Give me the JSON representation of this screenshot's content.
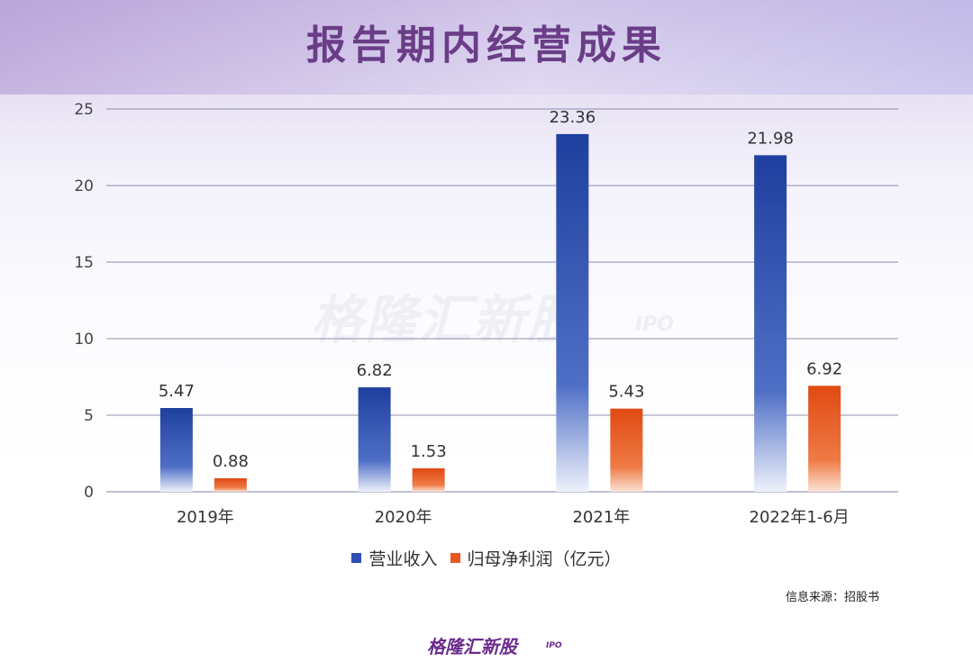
{
  "title": "报告期内经营成果",
  "watermark": {
    "text": "格隆汇新股",
    "sub": "IPO"
  },
  "legend": {
    "revenue": "营业收入",
    "profit": "归母净利润（亿元）"
  },
  "source": "信息来源：招股书",
  "brand": {
    "text": "格隆汇新股",
    "sub": "IPO"
  },
  "colors": {
    "revenue": "#2e4fb3",
    "profit": "#e8581e",
    "title": "#6a3d87",
    "grid": "#8e8eb0"
  },
  "chart_data": {
    "type": "bar",
    "categories": [
      "2019年",
      "2020年",
      "2021年",
      "2022年1-6月"
    ],
    "series": [
      {
        "name": "营业收入",
        "values": [
          5.47,
          6.82,
          23.36,
          21.98
        ],
        "labels": [
          "5.47",
          "6.82",
          "23.36",
          "21.98"
        ]
      },
      {
        "name": "归母净利润（亿元）",
        "values": [
          0.88,
          1.53,
          5.43,
          6.92
        ],
        "labels": [
          "0.88",
          "1.53",
          "5.43",
          "6.92"
        ]
      }
    ],
    "yticks": [
      "0",
      "5",
      "10",
      "15",
      "20",
      "25"
    ],
    "ylim": [
      0,
      25
    ],
    "grid": true,
    "legend_position": "bottom"
  }
}
